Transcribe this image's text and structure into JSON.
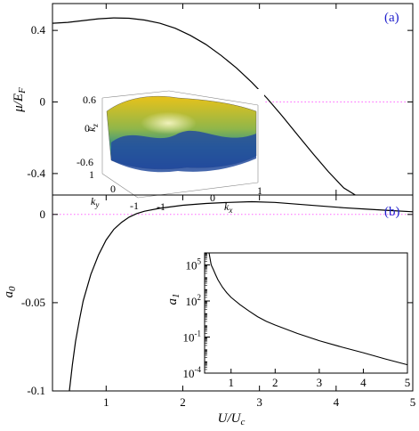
{
  "colors": {
    "panel_label": "#1f1fcc",
    "zero_line": "#ff66ff",
    "curve": "#000000"
  },
  "chart_data": [
    {
      "id": "a",
      "panel_label": "(a)",
      "type": "line",
      "xlim": [
        0.3,
        5
      ],
      "ylim": [
        -0.52,
        0.55
      ],
      "xticks": [
        1,
        2,
        3,
        4,
        5
      ],
      "yticks": [
        0.4,
        0,
        -0.4
      ],
      "ytick_labels": [
        "0.4",
        "0",
        "-0.4"
      ],
      "ylabel": "μ/E_F",
      "reference_line": {
        "y": 0,
        "style": "dotted",
        "from_x": 2.8
      },
      "series": [
        {
          "x": [
            0.3,
            0.5,
            0.7,
            0.9,
            1.1,
            1.3,
            1.5,
            1.7,
            1.9,
            2.1,
            2.3,
            2.5,
            2.7,
            2.9,
            3.1,
            3.3,
            3.5,
            3.7,
            3.9,
            4.1,
            4.25
          ],
          "y": [
            0.44,
            0.445,
            0.455,
            0.465,
            0.47,
            0.468,
            0.458,
            0.44,
            0.412,
            0.372,
            0.322,
            0.26,
            0.19,
            0.11,
            0.02,
            -0.08,
            -0.185,
            -0.29,
            -0.39,
            -0.48,
            -0.52
          ]
        }
      ]
    },
    {
      "id": "b",
      "panel_label": "(b)",
      "type": "line",
      "xlim": [
        0.3,
        5
      ],
      "ylim": [
        -0.1,
        0.011
      ],
      "xticks": [
        1,
        2,
        3,
        4,
        5
      ],
      "xtick_labels": [
        "1",
        "2",
        "3",
        "4",
        "5"
      ],
      "yticks": [
        0,
        -0.05,
        -0.1
      ],
      "ytick_labels": [
        "0",
        "-0.05",
        "-0.1"
      ],
      "xlabel": "U/U_c",
      "ylabel": "a_0",
      "reference_line": {
        "y": 0,
        "style": "dotted"
      },
      "series": [
        {
          "x": [
            0.52,
            0.56,
            0.6,
            0.65,
            0.7,
            0.8,
            0.9,
            1.0,
            1.1,
            1.2,
            1.3,
            1.4,
            1.5,
            1.7,
            2.0,
            2.3,
            2.6,
            2.9,
            3.2,
            3.5,
            3.8,
            4.1,
            4.4,
            4.7,
            5.0
          ],
          "y": [
            -0.1,
            -0.085,
            -0.072,
            -0.06,
            -0.049,
            -0.034,
            -0.023,
            -0.0145,
            -0.0085,
            -0.0045,
            -0.0015,
            0.0005,
            0.0018,
            0.0035,
            0.0052,
            0.0062,
            0.0068,
            0.0072,
            0.0068,
            0.0058,
            0.0048,
            0.0038,
            0.003,
            0.0022,
            0.0015
          ]
        }
      ]
    },
    {
      "id": "b-inset",
      "type": "line",
      "xlim": [
        0.4,
        5
      ],
      "ylog": true,
      "ylim": [
        0.0001,
        1000000
      ],
      "xticks": [
        1,
        2,
        3,
        4,
        5
      ],
      "xtick_labels": [
        "1",
        "2",
        "3",
        "4",
        "5"
      ],
      "ytick_labels": [
        {
          "base": "10",
          "exp": "5",
          "value": 100000
        },
        {
          "base": "10",
          "exp": "2",
          "value": 100
        },
        {
          "base": "10",
          "exp": "-1",
          "value": 0.1
        },
        {
          "base": "10",
          "exp": "-4",
          "value": 0.0001
        }
      ],
      "ylabel": "a_1",
      "series": [
        {
          "x": [
            0.5,
            0.55,
            0.6,
            0.65,
            0.7,
            0.8,
            0.9,
            1.0,
            1.2,
            1.4,
            1.6,
            1.8,
            2.0,
            2.5,
            3.0,
            3.5,
            4.0,
            4.5,
            5.0
          ],
          "y": [
            1000000,
            100000,
            40000,
            15000,
            6000,
            1500,
            500,
            200,
            50,
            15,
            5,
            2,
            1,
            0.2,
            0.05,
            0.015,
            0.005,
            0.0015,
            0.0005
          ]
        }
      ]
    },
    {
      "id": "a-inset",
      "type": "surface",
      "xlabel": "k_x",
      "ylabel": "k_y",
      "zlabel": "k_z",
      "xtick_labels": [
        "-1",
        "0",
        "1"
      ],
      "ytick_labels": [
        "1",
        "0",
        "-1"
      ],
      "ztick_labels": [
        "0.6",
        "0",
        "-0.6"
      ],
      "color_top": "#e8c21a",
      "color_bottom": "#1b3f9a"
    }
  ]
}
